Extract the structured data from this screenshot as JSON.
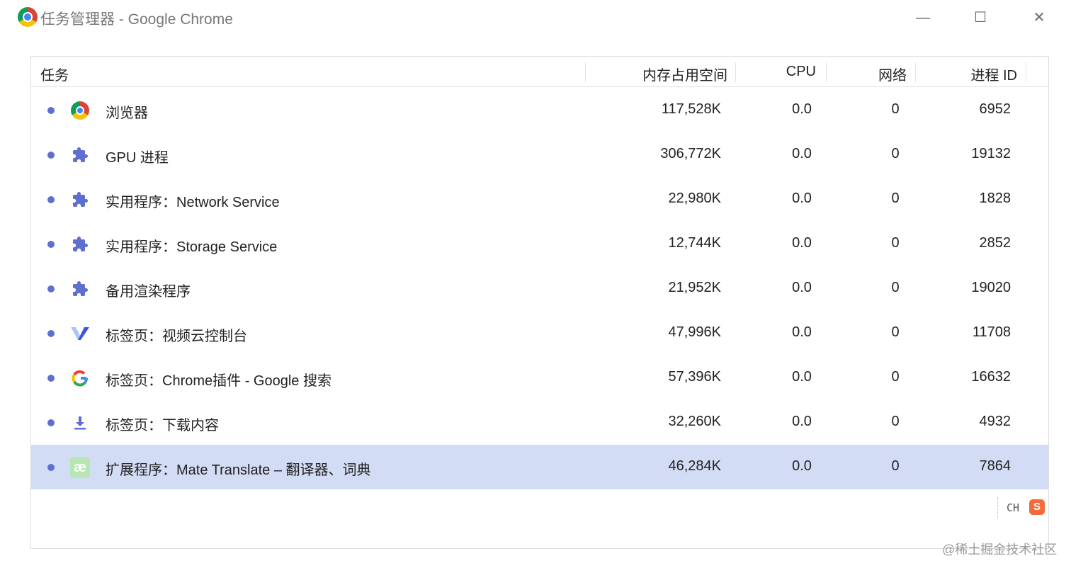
{
  "window": {
    "title": "任务管理器 - Google Chrome",
    "minimize": "—",
    "maximize": "☐",
    "close": "✕"
  },
  "columns": {
    "task": "任务",
    "memory": "内存占用空间",
    "cpu": "CPU",
    "network": "网络",
    "pid": "进程 ID"
  },
  "rows": [
    {
      "icon": "chrome-icon",
      "name": "浏览器",
      "memory": "117,528K",
      "cpu": "0.0",
      "network": "0",
      "pid": "6952"
    },
    {
      "icon": "puzzle-icon",
      "name": "GPU 进程",
      "memory": "306,772K",
      "cpu": "0.0",
      "network": "0",
      "pid": "19132"
    },
    {
      "icon": "puzzle-icon",
      "name": "实用程序：Network Service",
      "memory": "22,980K",
      "cpu": "0.0",
      "network": "0",
      "pid": "1828"
    },
    {
      "icon": "puzzle-icon",
      "name": "实用程序：Storage Service",
      "memory": "12,744K",
      "cpu": "0.0",
      "network": "0",
      "pid": "2852"
    },
    {
      "icon": "puzzle-icon",
      "name": "备用渲染程序",
      "memory": "21,952K",
      "cpu": "0.0",
      "network": "0",
      "pid": "19020"
    },
    {
      "icon": "v-logo-icon",
      "name": "标签页：视频云控制台",
      "memory": "47,996K",
      "cpu": "0.0",
      "network": "0",
      "pid": "11708"
    },
    {
      "icon": "google-g-icon",
      "name": "标签页：Chrome插件 - Google 搜索",
      "memory": "57,396K",
      "cpu": "0.0",
      "network": "0",
      "pid": "16632"
    },
    {
      "icon": "download-icon",
      "name": "标签页：下载内容",
      "memory": "32,260K",
      "cpu": "0.0",
      "network": "0",
      "pid": "4932"
    },
    {
      "icon": "mate-translate-icon",
      "name": "扩展程序：Mate Translate – 翻译器、词典",
      "memory": "46,284K",
      "cpu": "0.0",
      "network": "0",
      "pid": "7864",
      "selected": true
    }
  ],
  "ime": {
    "lang": "CH",
    "logo": "S"
  },
  "watermark": "@稀土掘金技术社区",
  "colors": {
    "selected_row": "#d3dcf5",
    "dot": "#5f6fd0",
    "puzzle": "#5f6fd0"
  }
}
